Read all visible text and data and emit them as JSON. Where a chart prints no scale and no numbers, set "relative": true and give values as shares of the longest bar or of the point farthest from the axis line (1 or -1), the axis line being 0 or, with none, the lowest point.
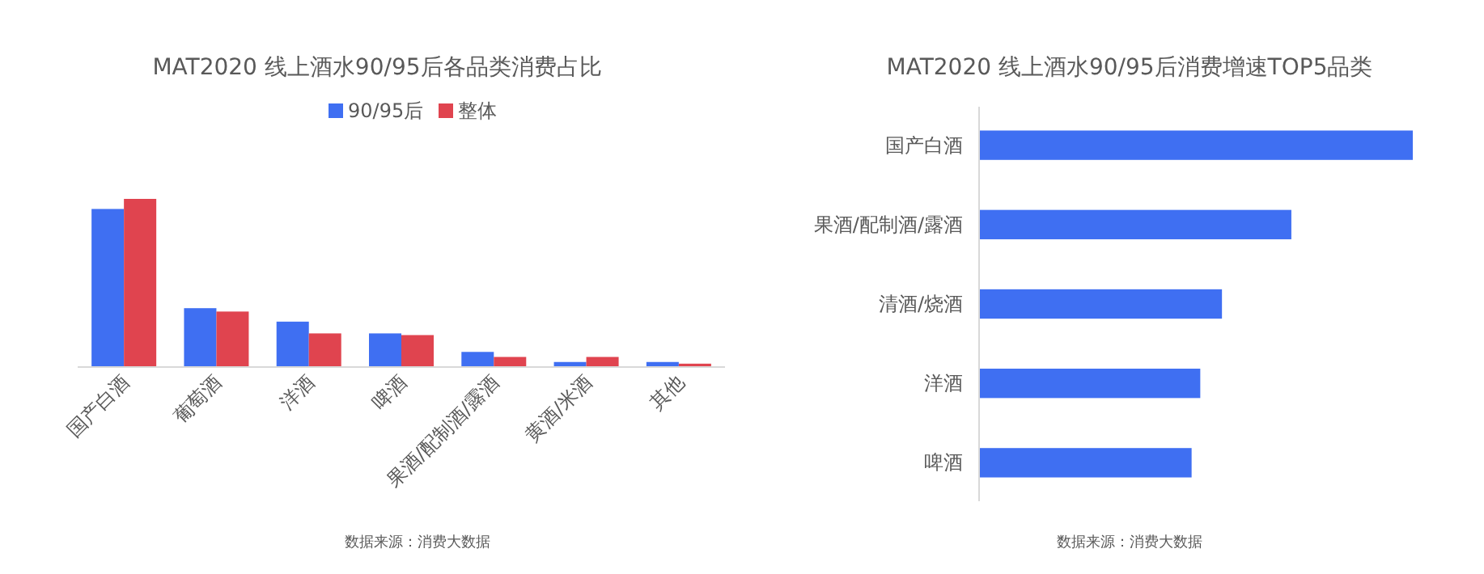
{
  "chart_data": [
    {
      "type": "bar",
      "title": "MAT2020 线上酒水90/95后各品类消费占比",
      "relative": true,
      "legend": "top",
      "categories": [
        "国产白酒",
        "葡萄酒",
        "洋酒",
        "啤酒",
        "果酒/配制酒/露酒",
        "黄酒/米酒",
        "其他"
      ],
      "series": [
        {
          "name": "90/95后",
          "color": "#3f6ff2",
          "values": [
            0.94,
            0.35,
            0.27,
            0.2,
            0.09,
            0.03,
            0.03
          ]
        },
        {
          "name": "整体",
          "color": "#e0444f",
          "values": [
            1,
            0.33,
            0.2,
            0.19,
            0.06,
            0.06,
            0.02
          ]
        }
      ],
      "annotations": [
        "数据来源：消费大数据"
      ]
    },
    {
      "type": "bar",
      "title": "MAT2020 线上酒水90/95后消费增速TOP5品类",
      "relative": true,
      "orientation": "horizontal",
      "categories": [
        "国产白酒",
        "果酒/配制酒/露酒",
        "清酒/烧酒",
        "洋酒",
        "啤酒"
      ],
      "series": [
        {
          "color": "#3f6ff2",
          "values": [
            1,
            0.72,
            0.56,
            0.51,
            0.49
          ]
        }
      ],
      "annotations": [
        "数据来源：消费大数据"
      ]
    }
  ]
}
